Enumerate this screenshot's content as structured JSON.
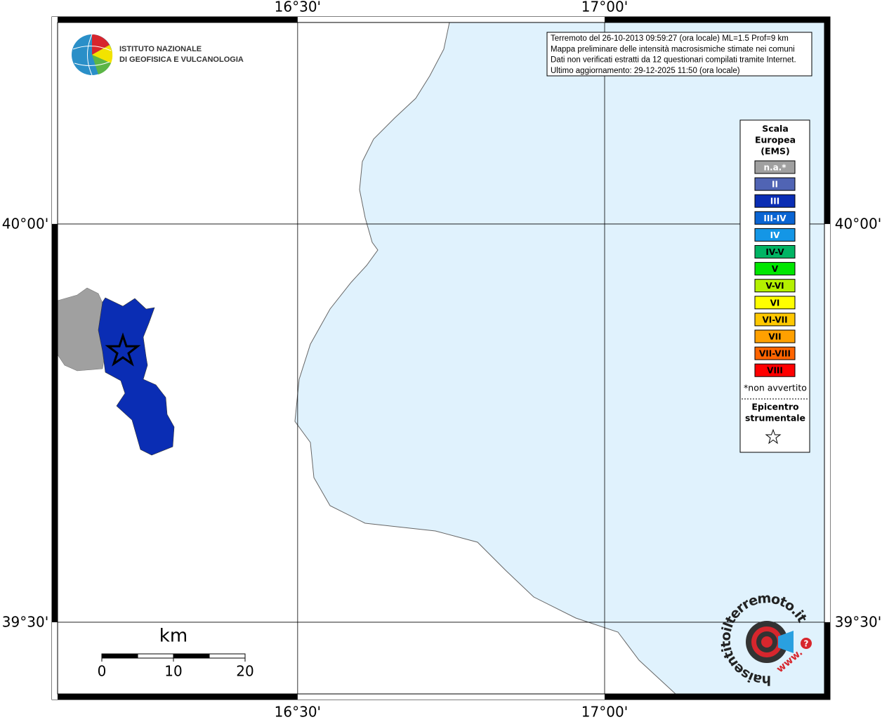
{
  "map": {
    "xlim": [
      16.109,
      17.358
    ],
    "ylim": [
      39.41,
      40.253
    ],
    "lon_ticks": [
      {
        "value": 16.5,
        "label": "16°30'"
      },
      {
        "value": 17,
        "label": "17°00'"
      }
    ],
    "lat_ticks": [
      {
        "value": 40,
        "label": "40°00'"
      },
      {
        "value": 39.5,
        "label": "39°30'"
      }
    ],
    "sea_color": "#e0f2fd"
  },
  "logo": {
    "lines": [
      "ISTITUTO NAZIONALE",
      "DI GEOFISICA E VULCANOLOGIA"
    ]
  },
  "info": {
    "lines": [
      "Terremoto del 26-10-2013 09:59:27 (ora locale) ML=1.5 Prof=9 km",
      "Mappa preliminare delle intensità macrosismiche stimate nei comuni",
      "Dati non verificati estratti da 12 questionari compilati tramite Internet.",
      "Ultimo aggiornamento: 29-12-2025 11:50 (ora locale)"
    ]
  },
  "legend": {
    "title": [
      "Scala",
      "Europea",
      "(EMS)"
    ],
    "items": [
      {
        "label": "n.a.*",
        "color": "#a0a0a0",
        "text_color": "#ffffff"
      },
      {
        "label": "II",
        "color": "#5064b4",
        "text_color": "#ffffff"
      },
      {
        "label": "III",
        "color": "#0a2db4",
        "text_color": "#ffffff"
      },
      {
        "label": "III-IV",
        "color": "#0a64d2",
        "text_color": "#ffffff"
      },
      {
        "label": "IV",
        "color": "#1496e6",
        "text_color": "#ffffff"
      },
      {
        "label": "IV-V",
        "color": "#00b464",
        "text_color": "#000000"
      },
      {
        "label": "V",
        "color": "#00e600",
        "text_color": "#000000"
      },
      {
        "label": "V-VI",
        "color": "#b4f000",
        "text_color": "#000000"
      },
      {
        "label": "VI",
        "color": "#ffff00",
        "text_color": "#000000"
      },
      {
        "label": "VI-VII",
        "color": "#ffc800",
        "text_color": "#000000"
      },
      {
        "label": "VII",
        "color": "#ffa000",
        "text_color": "#000000"
      },
      {
        "label": "VII-VIII",
        "color": "#ff6400",
        "text_color": "#000000"
      },
      {
        "label": "VIII",
        "color": "#ff0000",
        "text_color": "#000000"
      }
    ],
    "note": "*non avvertito",
    "epicenter": [
      "Epicentro",
      "strumentale"
    ]
  },
  "scale_bar": {
    "unit": "km",
    "ticks": [
      0,
      10,
      20
    ]
  },
  "badge": {
    "text": "haisentitoilterremoto.it",
    "www": "www.",
    "question": "?"
  }
}
